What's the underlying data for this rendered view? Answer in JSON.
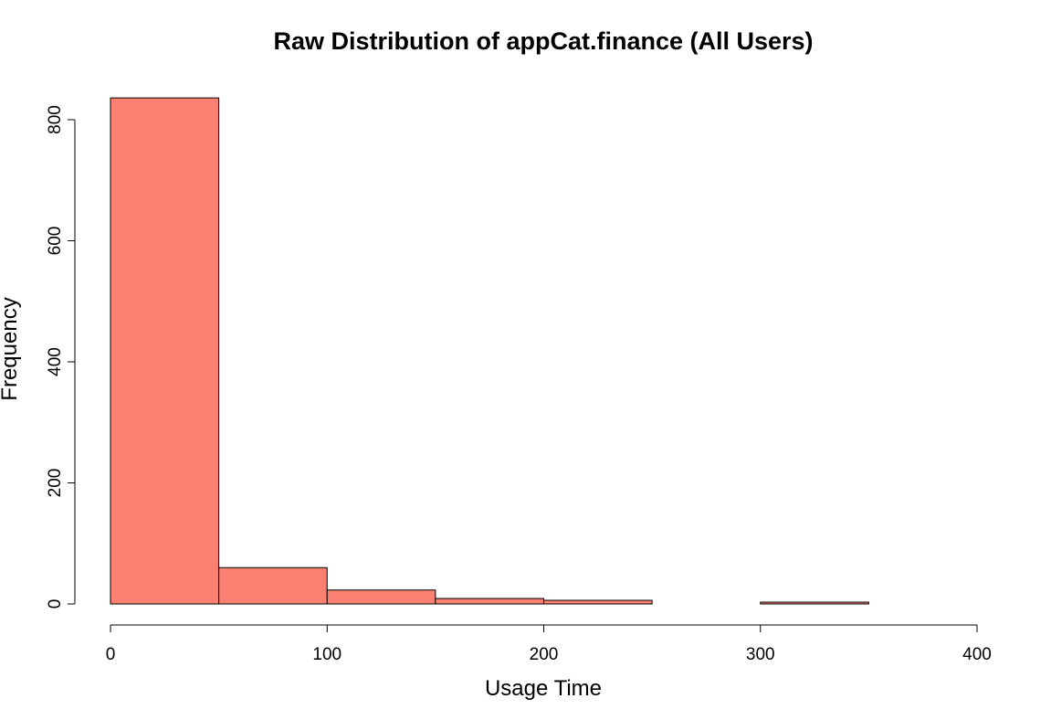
{
  "chart_data": {
    "type": "bar",
    "subtype": "histogram",
    "title": "Raw Distribution of appCat.finance (All Users)",
    "xlabel": "Usage Time",
    "ylabel": "Frequency",
    "bins": [
      {
        "start": 0,
        "end": 50,
        "count": 836
      },
      {
        "start": 50,
        "end": 100,
        "count": 60
      },
      {
        "start": 100,
        "end": 150,
        "count": 23
      },
      {
        "start": 150,
        "end": 200,
        "count": 9
      },
      {
        "start": 200,
        "end": 250,
        "count": 6
      },
      {
        "start": 250,
        "end": 300,
        "count": 0
      },
      {
        "start": 300,
        "end": 350,
        "count": 3
      },
      {
        "start": 350,
        "end": 400,
        "count": 0
      }
    ],
    "xlim": [
      0,
      400
    ],
    "ylim": [
      0,
      840
    ],
    "x_ticks": [
      0,
      100,
      200,
      300,
      400
    ],
    "y_ticks": [
      0,
      200,
      400,
      600,
      800
    ],
    "x_tick_labels": [
      "0",
      "100",
      "200",
      "300",
      "400"
    ],
    "y_tick_labels": [
      "0",
      "200",
      "400",
      "600",
      "800"
    ],
    "bar_color": "#FA8072",
    "bar_edge_color": "#000000",
    "grid": false,
    "legend": "none"
  }
}
